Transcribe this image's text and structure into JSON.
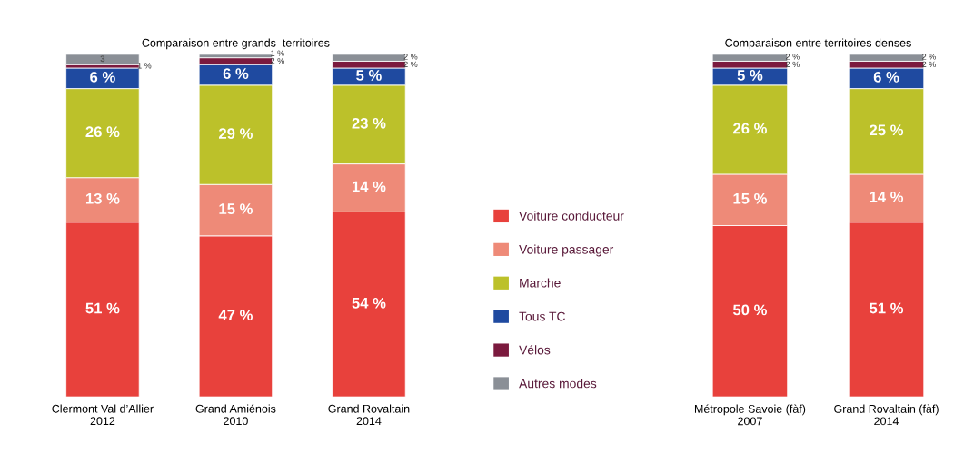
{
  "chart_data": [
    {
      "type": "bar",
      "stacked": true,
      "title": "Comparaison entre grands  territoires",
      "categories": [
        "Clermont Val d’Allier\n2012",
        "Grand Amiénois\n2010",
        "Grand Rovaltain\n2014"
      ],
      "ylim": [
        0,
        100
      ],
      "tick_labels": "x",
      "legend": false,
      "grid": false,
      "series": [
        {
          "color": "#e8413c",
          "values": [
            51,
            47,
            54
          ],
          "value_labels": [
            "51 %",
            "47 %",
            "54 %"
          ]
        },
        {
          "color": "#ee8a78",
          "values": [
            13,
            15,
            14
          ],
          "value_labels": [
            "13 %",
            "15 %",
            "14 %"
          ]
        },
        {
          "color": "#bcc12a",
          "values": [
            26,
            29,
            23
          ],
          "value_labels": [
            "26 %",
            "29 %",
            "23 %"
          ]
        },
        {
          "color": "#1f4aa0",
          "values": [
            6,
            6,
            5
          ],
          "value_labels": [
            "6 %",
            "6 %",
            "5 %"
          ]
        },
        {
          "color": "#7b1a3e",
          "values": [
            1,
            2,
            2
          ],
          "value_labels": [
            "1 %",
            "2 %",
            "2 %"
          ]
        },
        {
          "color": "#8a8f96",
          "values": [
            3,
            1,
            2
          ],
          "value_labels": [
            "3",
            "1 %",
            "2 %"
          ]
        }
      ]
    },
    {
      "type": "bar",
      "stacked": true,
      "title": "Comparaison entre territoires denses",
      "categories": [
        "Métropole Savoie (fàf)\n2007",
        "Grand Rovaltain (fàf)\n2014"
      ],
      "ylim": [
        0,
        100
      ],
      "tick_labels": "x",
      "legend": "left",
      "grid": false,
      "series": [
        {
          "name": "Voiture conducteur",
          "color": "#e8413c",
          "values": [
            50,
            51
          ],
          "value_labels": [
            "50 %",
            "51 %"
          ]
        },
        {
          "name": "Voiture passager",
          "color": "#ee8a78",
          "values": [
            15,
            14
          ],
          "value_labels": [
            "15 %",
            "14 %"
          ]
        },
        {
          "name": "Marche",
          "color": "#bcc12a",
          "values": [
            26,
            25
          ],
          "value_labels": [
            "26 %",
            "25 %"
          ]
        },
        {
          "name": "Tous TC",
          "color": "#1f4aa0",
          "values": [
            5,
            6
          ],
          "value_labels": [
            "5 %",
            "6 %"
          ]
        },
        {
          "name": "Vélos",
          "color": "#7b1a3e",
          "values": [
            2,
            2
          ],
          "value_labels": [
            "2 %",
            "2 %"
          ]
        },
        {
          "name": "Autres modes",
          "color": "#8a8f96",
          "values": [
            2,
            2
          ],
          "value_labels": [
            "2 %",
            "2 %"
          ]
        }
      ]
    }
  ]
}
